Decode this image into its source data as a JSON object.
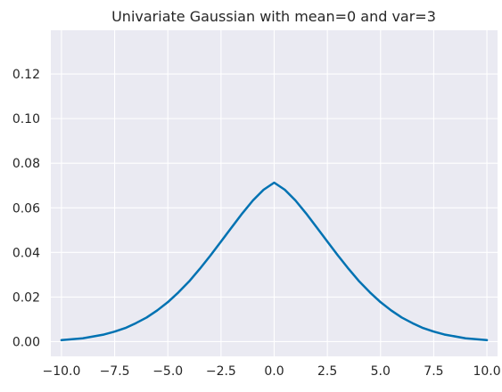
{
  "chart_data": {
    "type": "line",
    "title": "Univariate Gaussian with mean=0 and var=3",
    "xlabel": "",
    "ylabel": "",
    "xlim": [
      -10.5,
      10.5
    ],
    "ylim": [
      -0.0066,
      0.1396
    ],
    "x_ticks": [
      -10.0,
      -7.5,
      -5.0,
      -2.5,
      0.0,
      2.5,
      5.0,
      7.5,
      10.0
    ],
    "x_tick_labels": [
      "−10.0",
      "−7.5",
      "−5.0",
      "−2.5",
      "0.0",
      "2.5",
      "5.0",
      "7.5",
      "10.0"
    ],
    "y_ticks": [
      0.0,
      0.02,
      0.04,
      0.06,
      0.08,
      0.1,
      0.12
    ],
    "y_tick_labels": [
      "0.00",
      "0.02",
      "0.04",
      "0.06",
      "0.08",
      "0.10",
      "0.12"
    ],
    "grid": true,
    "background_color": "#eaeaf2",
    "grid_color": "#ffffff",
    "series": [
      {
        "color": "#0072b2",
        "x": [
          -10.0,
          -9.0,
          -8.0,
          -7.5,
          -7.0,
          -6.5,
          -6.0,
          -5.5,
          -5.0,
          -4.5,
          -4.0,
          -3.5,
          -3.0,
          -2.5,
          -2.0,
          -1.5,
          -1.0,
          -0.5,
          0.0,
          0.5,
          1.0,
          1.5,
          2.0,
          2.5,
          3.0,
          3.5,
          4.0,
          4.5,
          5.0,
          5.5,
          6.0,
          6.5,
          7.0,
          7.5,
          8.0,
          9.0,
          10.0
        ],
        "y": [
          0.0007,
          0.0015,
          0.0032,
          0.0045,
          0.0061,
          0.0083,
          0.0108,
          0.014,
          0.0177,
          0.0221,
          0.027,
          0.0326,
          0.0386,
          0.0449,
          0.0512,
          0.0575,
          0.0633,
          0.0681,
          0.0713,
          0.0681,
          0.0633,
          0.0575,
          0.0512,
          0.0449,
          0.0386,
          0.0326,
          0.027,
          0.0221,
          0.0177,
          0.014,
          0.0108,
          0.0083,
          0.0061,
          0.0045,
          0.0032,
          0.0015,
          0.0007
        ]
      }
    ]
  }
}
